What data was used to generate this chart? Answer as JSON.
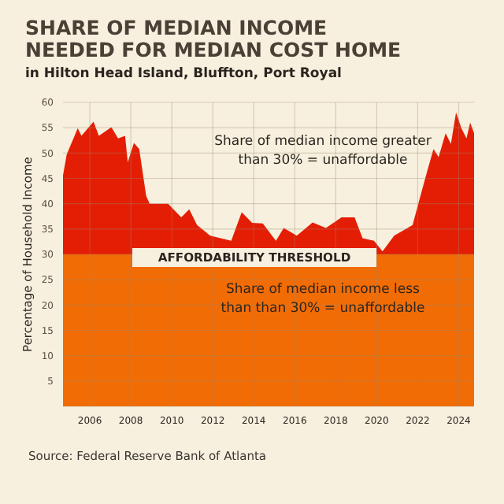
{
  "chart_data": {
    "type": "area",
    "title": "SHARE OF MEDIAN INCOME NEEDED FOR MEDIAN COST HOME",
    "subtitle": "in Hilton Head Island, Bluffton, Port Royal",
    "ylabel": "Percentage of Household Income",
    "x": [
      2004.69,
      2004.87,
      2005.41,
      2005.59,
      2006.18,
      2006.44,
      2007.05,
      2007.38,
      2007.72,
      2007.85,
      2008.15,
      2008.41,
      2008.75,
      2008.92,
      2009.82,
      2010.46,
      2010.85,
      2011.23,
      2011.87,
      2012.9,
      2013.41,
      2013.92,
      2014.44,
      2015.08,
      2015.46,
      2016.1,
      2016.87,
      2017.52,
      2018.28,
      2018.92,
      2019.31,
      2019.87,
      2020.28,
      2020.85,
      2021.75,
      2022.13,
      2022.44,
      2022.77,
      2023.02,
      2023.36,
      2023.62,
      2023.87,
      2024.13,
      2024.38,
      2024.56,
      2024.75
    ],
    "series": [
      {
        "color": "#e41e05",
        "values": [
          45.6,
          49.7,
          54.9,
          53.4,
          56.2,
          53.4,
          55.1,
          52.9,
          53.4,
          48.2,
          52.0,
          50.8,
          41.5,
          40.0,
          40.0,
          37.3,
          38.9,
          35.8,
          33.7,
          32.7,
          38.3,
          36.2,
          36.1,
          32.7,
          35.2,
          33.7,
          36.3,
          35.2,
          37.3,
          37.3,
          33.2,
          32.7,
          30.6,
          33.7,
          35.8,
          41.5,
          46.1,
          50.8,
          49.2,
          53.9,
          51.8,
          58.0,
          54.9,
          52.9,
          56.0,
          53.9
        ]
      }
    ],
    "xlim": [
      2004.69,
      2024.75
    ],
    "xticks": [
      2006,
      2008,
      2010,
      2012,
      2014,
      2016,
      2018,
      2020,
      2022,
      2024
    ],
    "ylim": [
      0,
      60
    ],
    "yticks": [
      {
        "value": 0,
        "label": null
      },
      5,
      10,
      15,
      20,
      25,
      30,
      35,
      40,
      45,
      50,
      55,
      60
    ],
    "grid": true,
    "bands": [
      {
        "axis": "y",
        "from": 0,
        "to": 30,
        "label": "AFFORDABILITY THRESHOLD",
        "color": "#f26c05"
      }
    ],
    "annotations": [
      "Share of median income greater than 30% = unaffordable",
      "Share of median income less than than 30% = unaffordable",
      "Source: Federal Reserve Bank of Atlanta"
    ]
  }
}
